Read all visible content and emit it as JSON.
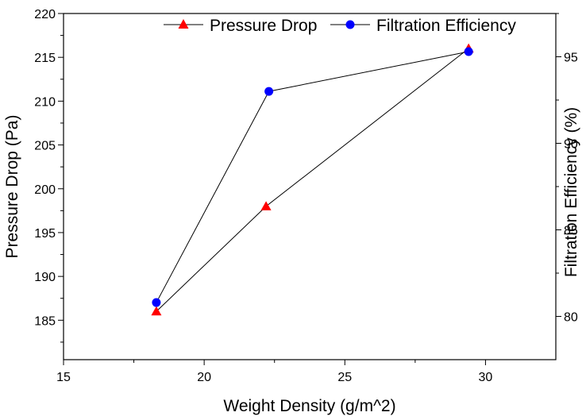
{
  "chart_data": {
    "type": "line",
    "xlabel": "Weight Density (g/m^2)",
    "ylabel": "Pressure Drop (Pa)",
    "y2label": "Filtration Efficiency (%)",
    "xlim": [
      15,
      32.5
    ],
    "ylim": [
      180.5,
      220
    ],
    "y2lim": [
      77.5,
      97.5
    ],
    "x_ticks": [
      "15",
      "20",
      "25",
      "30"
    ],
    "y_ticks": [
      "185",
      "190",
      "195",
      "200",
      "205",
      "210",
      "215",
      "220"
    ],
    "y2_ticks": [
      "80",
      "85",
      "90",
      "95"
    ],
    "legend_position": "top",
    "grid": false,
    "series": [
      {
        "name": "Pressure Drop",
        "axis": "left",
        "marker": "triangle",
        "color": "#ff0000",
        "x": [
          18.3,
          22.2,
          29.4
        ],
        "y": [
          186,
          198,
          216
        ]
      },
      {
        "name": "Filtration Efficiency",
        "axis": "right",
        "marker": "circle",
        "color": "#0000ff",
        "x": [
          18.3,
          22.3,
          29.4
        ],
        "y": [
          80.8,
          93.0,
          95.3
        ]
      }
    ]
  }
}
